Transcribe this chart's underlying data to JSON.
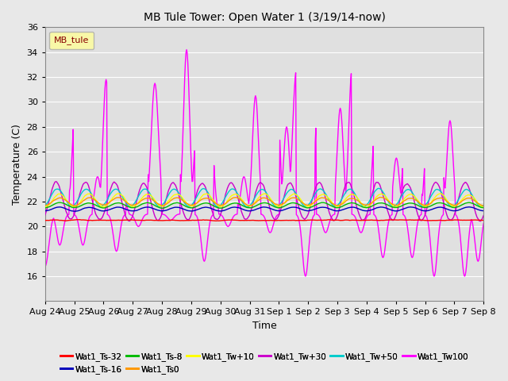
{
  "title": "MB Tule Tower: Open Water 1 (3/19/14-now)",
  "xlabel": "Time",
  "ylabel": "Temperature (C)",
  "ylim": [
    14,
    36
  ],
  "yticks": [
    16,
    18,
    20,
    22,
    24,
    26,
    28,
    30,
    32,
    34,
    36
  ],
  "xticklabels": [
    "Aug 24",
    "Aug 25",
    "Aug 26",
    "Aug 27",
    "Aug 28",
    "Aug 29",
    "Aug 30",
    "Aug 31",
    "Sep 1",
    "Sep 2",
    "Sep 3",
    "Sep 4",
    "Sep 5",
    "Sep 6",
    "Sep 7",
    "Sep 8"
  ],
  "legend_label": "MB_tule",
  "series_colors": {
    "Wat1_Ts-32": "#ff0000",
    "Wat1_Ts-16": "#0000bb",
    "Wat1_Ts-8": "#00bb00",
    "Wat1_Ts0": "#ff9900",
    "Wat1_Tw+10": "#ffff00",
    "Wat1_Tw+30": "#cc00cc",
    "Wat1_Tw+50": "#00cccc",
    "Wat1_Tw100": "#ff00ff"
  },
  "background_color": "#e8e8e8",
  "plot_bg_color": "#e0e0e0",
  "grid_color": "#ffffff"
}
